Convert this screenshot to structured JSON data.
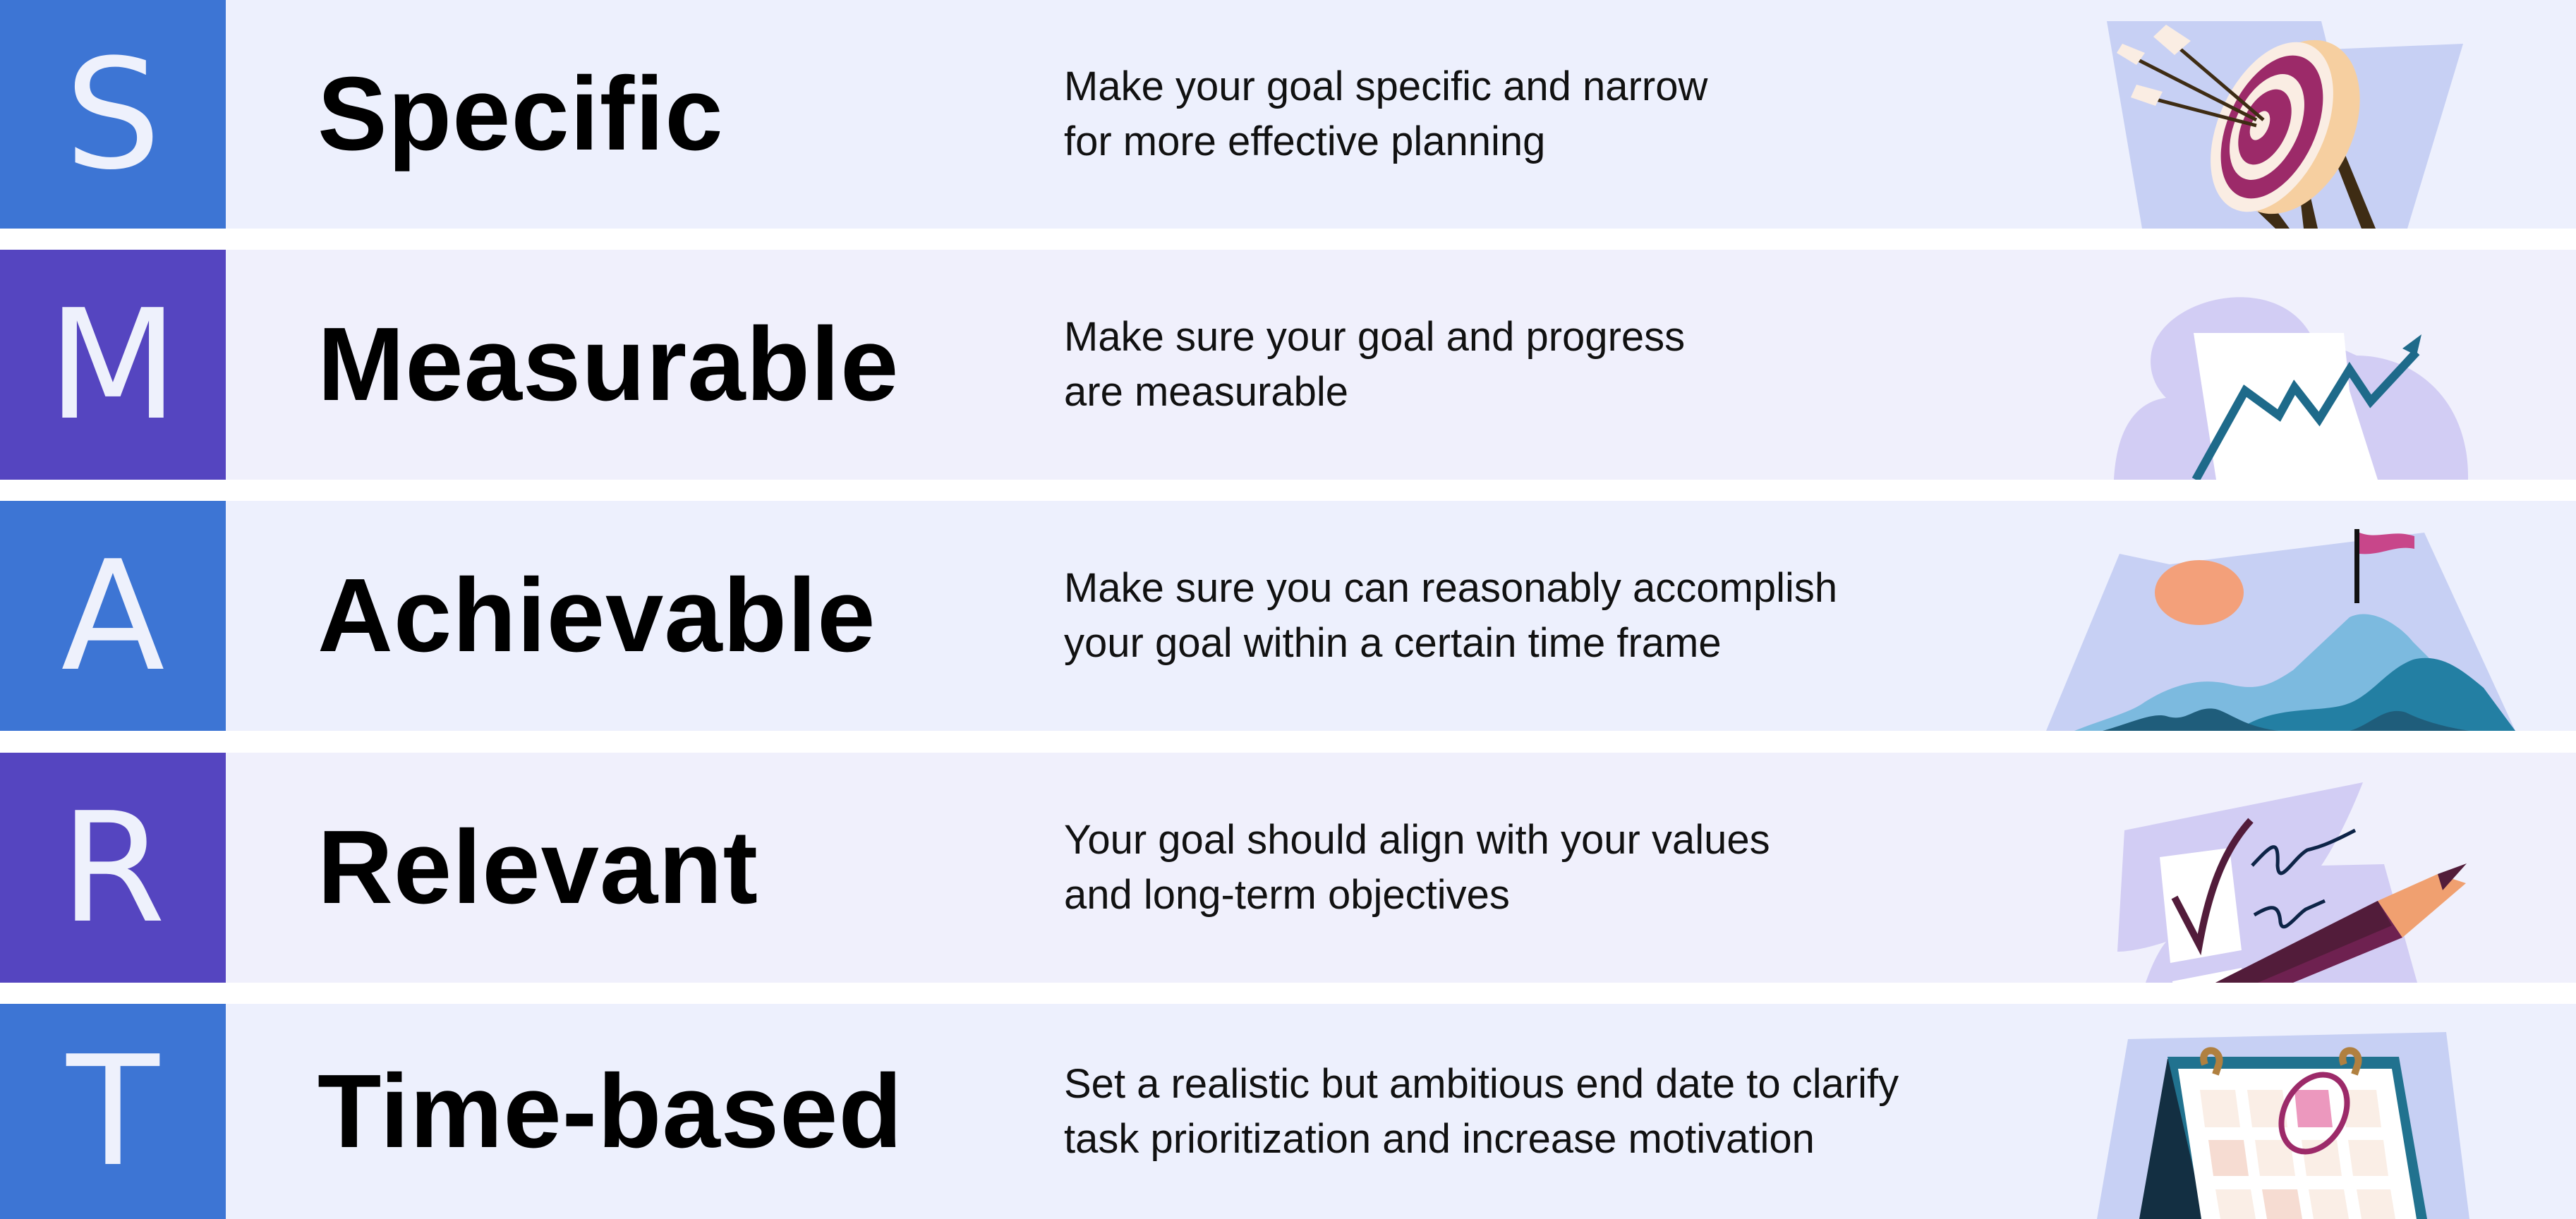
{
  "colors": {
    "blue": "#3D75D4",
    "purple": "#5545C0",
    "row_bg_a": "#EDF0FD",
    "row_bg_b": "#F0F0FC"
  },
  "rows": [
    {
      "letter": "S",
      "title": "Specific",
      "lines": [
        "Make your goal specific and narrow",
        "for more effective planning"
      ],
      "icon": "target-arrows-icon"
    },
    {
      "letter": "M",
      "title": "Measurable",
      "lines": [
        "Make sure your goal and progress",
        "are measurable"
      ],
      "icon": "rising-chart-icon"
    },
    {
      "letter": "A",
      "title": "Achievable",
      "lines": [
        "Make sure you can reasonably accomplish",
        "your goal within a certain time frame"
      ],
      "icon": "mountain-flag-icon"
    },
    {
      "letter": "R",
      "title": "Relevant",
      "lines": [
        "Your goal should align with your values",
        "and long-term objectives"
      ],
      "icon": "checklist-pencil-icon"
    },
    {
      "letter": "T",
      "title": "Time-based",
      "lines": [
        "Set a realistic but ambitious end date to clarify",
        "task prioritization and increase motivation"
      ],
      "icon": "calendar-icon"
    }
  ]
}
